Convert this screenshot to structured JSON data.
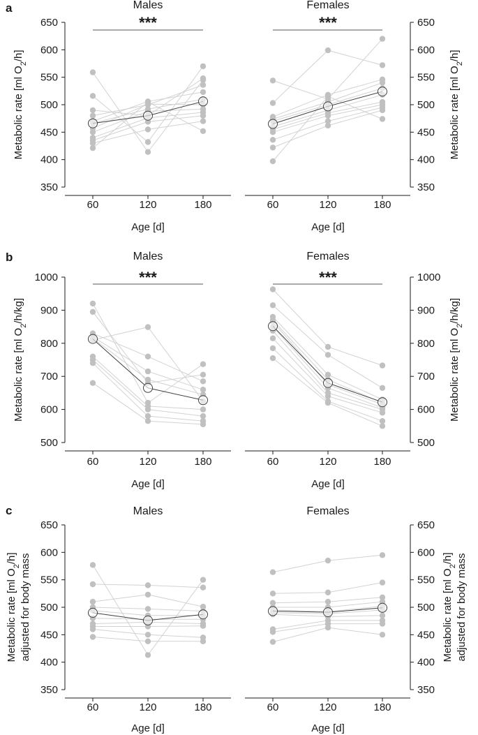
{
  "colors": {
    "individual": "#c0c0c0",
    "individual_line": "#d2d2d2",
    "mean_line": "#404040",
    "axis": "#1a1a1a"
  },
  "chart_data": [
    {
      "panel": "a",
      "subplot": "males",
      "type": "line",
      "title": "Males",
      "xlabel": "Age [d]",
      "ylabel": "Metabolic rate [ml O2/h]",
      "x": [
        "60",
        "120",
        "180"
      ],
      "ylim": [
        350,
        650
      ],
      "yticks": [
        350,
        400,
        450,
        500,
        550,
        600,
        650
      ],
      "significance": "***",
      "mean": [
        466,
        480,
        506
      ],
      "individuals": [
        [
          559,
          414,
          545
        ],
        [
          516,
          432,
          570
        ],
        [
          490,
          480,
          548
        ],
        [
          480,
          500,
          536
        ],
        [
          470,
          506,
          523
        ],
        [
          466,
          492,
          510
        ],
        [
          457,
          501,
          500
        ],
        [
          450,
          488,
          492
        ],
        [
          440,
          476,
          486
        ],
        [
          435,
          469,
          480
        ],
        [
          430,
          455,
          470
        ],
        [
          421,
          505,
          452
        ]
      ]
    },
    {
      "panel": "a",
      "subplot": "females",
      "type": "line",
      "title": "Females",
      "xlabel": "Age [d]",
      "ylabel": "Metabolic rate [ml O2/h]",
      "x": [
        "60",
        "120",
        "180"
      ],
      "ylim": [
        350,
        650
      ],
      "yticks": [
        350,
        400,
        450,
        500,
        550,
        600,
        650
      ],
      "significance": "***",
      "mean": [
        465,
        497,
        524
      ],
      "individuals": [
        [
          544,
          510,
          620
        ],
        [
          503,
          599,
          572
        ],
        [
          478,
          518,
          546
        ],
        [
          474,
          505,
          540
        ],
        [
          470,
          500,
          530
        ],
        [
          460,
          490,
          518
        ],
        [
          455,
          485,
          505
        ],
        [
          450,
          480,
          500
        ],
        [
          436,
          470,
          495
        ],
        [
          422,
          462,
          490
        ],
        [
          397,
          515,
          474
        ]
      ]
    },
    {
      "panel": "b",
      "subplot": "males",
      "type": "line",
      "title": "Males",
      "xlabel": "Age [d]",
      "ylabel": "Metabolic rate [ml O2/h/kg]",
      "x": [
        "60",
        "120",
        "180"
      ],
      "ylim": [
        500,
        1000
      ],
      "yticks": [
        500,
        600,
        700,
        800,
        900,
        1000
      ],
      "significance": "***",
      "mean": [
        813,
        665,
        628
      ],
      "individuals": [
        [
          920,
          620,
          737
        ],
        [
          895,
          680,
          705
        ],
        [
          830,
          760,
          685
        ],
        [
          820,
          715,
          660
        ],
        [
          815,
          690,
          645
        ],
        [
          810,
          849,
          625
        ],
        [
          760,
          610,
          600
        ],
        [
          750,
          600,
          580
        ],
        [
          740,
          580,
          565
        ],
        [
          680,
          565,
          555
        ]
      ]
    },
    {
      "panel": "b",
      "subplot": "females",
      "type": "line",
      "title": "Females",
      "xlabel": "Age [d]",
      "ylabel": "Metabolic rate [ml O2/h/kg]",
      "x": [
        "60",
        "120",
        "180"
      ],
      "ylim": [
        500,
        1000
      ],
      "yticks": [
        500,
        600,
        700,
        800,
        900,
        1000
      ],
      "significance": "***",
      "mean": [
        852,
        680,
        622
      ],
      "individuals": [
        [
          963,
          789,
          733
        ],
        [
          915,
          765,
          665
        ],
        [
          880,
          705,
          630
        ],
        [
          870,
          690,
          620
        ],
        [
          865,
          675,
          615
        ],
        [
          850,
          665,
          605
        ],
        [
          838,
          650,
          600
        ],
        [
          815,
          640,
          590
        ],
        [
          785,
          625,
          565
        ],
        [
          755,
          620,
          550
        ]
      ]
    },
    {
      "panel": "c",
      "subplot": "males",
      "type": "line",
      "title": "Males",
      "xlabel": "Age [d]",
      "ylabel": "Metabolic rate [ml O2/h] adjusted for body mass",
      "x": [
        "60",
        "120",
        "180"
      ],
      "ylim": [
        350,
        650
      ],
      "yticks": [
        350,
        400,
        450,
        500,
        550,
        600,
        650
      ],
      "mean": [
        490,
        476,
        487
      ],
      "individuals": [
        [
          577,
          413,
          550
        ],
        [
          542,
          540,
          536
        ],
        [
          510,
          523,
          501
        ],
        [
          500,
          497,
          493
        ],
        [
          494,
          485,
          485
        ],
        [
          480,
          478,
          478
        ],
        [
          470,
          473,
          470
        ],
        [
          465,
          465,
          466
        ],
        [
          460,
          450,
          445
        ],
        [
          446,
          438,
          438
        ]
      ]
    },
    {
      "panel": "c",
      "subplot": "females",
      "type": "line",
      "title": "Females",
      "xlabel": "Age [d]",
      "ylabel": "Metabolic rate [ml O2/h] adjusted for body mass",
      "x": [
        "60",
        "120",
        "180"
      ],
      "ylim": [
        350,
        650
      ],
      "yticks": [
        350,
        400,
        450,
        500,
        550,
        600,
        650
      ],
      "mean": [
        493,
        491,
        499
      ],
      "individuals": [
        [
          564,
          585,
          595
        ],
        [
          525,
          527,
          545
        ],
        [
          508,
          510,
          518
        ],
        [
          500,
          500,
          510
        ],
        [
          495,
          492,
          502
        ],
        [
          490,
          488,
          495
        ],
        [
          487,
          483,
          485
        ],
        [
          460,
          476,
          476
        ],
        [
          455,
          470,
          470
        ],
        [
          437,
          463,
          450
        ]
      ]
    }
  ]
}
